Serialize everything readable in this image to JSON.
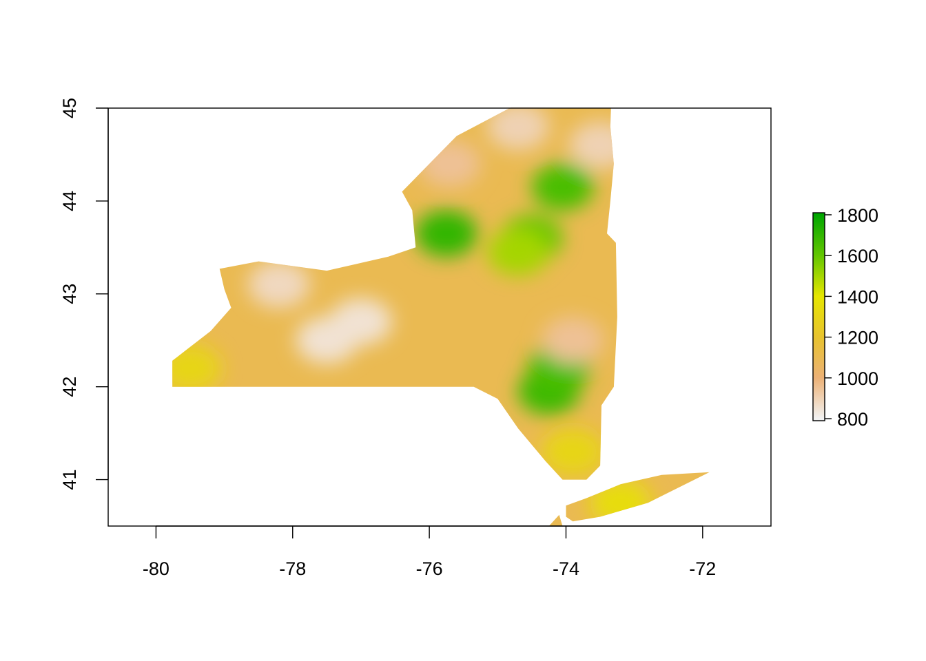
{
  "chart_data": {
    "type": "heatmap",
    "title": "",
    "xlabel": "",
    "ylabel": "",
    "xlim": [
      -80.7,
      -71.0
    ],
    "ylim": [
      40.5,
      45.0
    ],
    "x_ticks": [
      "-80",
      "-78",
      "-76",
      "-74",
      "-72"
    ],
    "x_tick_values": [
      -80,
      -78,
      -76,
      -74,
      -72
    ],
    "y_ticks": [
      "41",
      "42",
      "43",
      "44",
      "45"
    ],
    "y_tick_values": [
      41,
      42,
      43,
      44,
      45
    ],
    "legend": {
      "position": "right",
      "labels": [
        "800",
        "1000",
        "1200",
        "1400",
        "1600",
        "1800"
      ],
      "values": [
        800,
        1000,
        1200,
        1400,
        1600,
        1800
      ],
      "range": [
        790,
        1810
      ],
      "colors": [
        "#f2f2f2",
        "#ecb176",
        "#e8c32e",
        "#e6e600",
        "#63c600",
        "#00a600"
      ]
    },
    "region_outline": [
      [
        -79.76,
        42.0
      ],
      [
        -75.35,
        42.0
      ],
      [
        -75.0,
        41.87
      ],
      [
        -74.7,
        41.55
      ],
      [
        -74.3,
        41.2
      ],
      [
        -74.05,
        41.0
      ],
      [
        -73.7,
        41.0
      ],
      [
        -73.5,
        41.15
      ],
      [
        -73.48,
        41.8
      ],
      [
        -73.3,
        42.0
      ],
      [
        -73.25,
        42.75
      ],
      [
        -73.27,
        43.55
      ],
      [
        -73.4,
        43.65
      ],
      [
        -73.35,
        44.0
      ],
      [
        -73.3,
        44.4
      ],
      [
        -73.35,
        44.8
      ],
      [
        -73.34,
        45.01
      ],
      [
        -74.8,
        45.01
      ],
      [
        -75.6,
        44.7
      ],
      [
        -76.2,
        44.25
      ],
      [
        -76.4,
        44.1
      ],
      [
        -76.25,
        43.9
      ],
      [
        -76.2,
        43.5
      ],
      [
        -76.6,
        43.4
      ],
      [
        -77.5,
        43.25
      ],
      [
        -78.5,
        43.35
      ],
      [
        -79.07,
        43.27
      ],
      [
        -79.0,
        43.05
      ],
      [
        -78.9,
        42.85
      ],
      [
        -79.2,
        42.6
      ],
      [
        -79.76,
        42.28
      ]
    ],
    "long_island_outline": [
      [
        -74.0,
        40.6
      ],
      [
        -73.9,
        40.55
      ],
      [
        -73.5,
        40.6
      ],
      [
        -72.8,
        40.75
      ],
      [
        -71.9,
        41.08
      ],
      [
        -72.6,
        41.05
      ],
      [
        -73.2,
        40.95
      ],
      [
        -73.7,
        40.8
      ],
      [
        -74.0,
        40.72
      ]
    ],
    "staten_island_outline": [
      [
        -74.25,
        40.5
      ],
      [
        -74.05,
        40.5
      ],
      [
        -74.1,
        40.62
      ]
    ],
    "value_patches": [
      {
        "x": -75.75,
        "y": 43.65,
        "value": 1700
      },
      {
        "x": -74.5,
        "y": 43.6,
        "value": 1600
      },
      {
        "x": -74.7,
        "y": 43.45,
        "value": 1500
      },
      {
        "x": -74.05,
        "y": 44.15,
        "value": 1650
      },
      {
        "x": -74.25,
        "y": 41.95,
        "value": 1680
      },
      {
        "x": -74.1,
        "y": 42.2,
        "value": 1650
      },
      {
        "x": -73.2,
        "y": 40.75,
        "value": 1350
      },
      {
        "x": -73.9,
        "y": 41.3,
        "value": 1300
      },
      {
        "x": -79.5,
        "y": 42.2,
        "value": 1300
      },
      {
        "x": -77.5,
        "y": 42.5,
        "value": 850
      },
      {
        "x": -77.0,
        "y": 42.7,
        "value": 850
      },
      {
        "x": -78.2,
        "y": 43.1,
        "value": 880
      },
      {
        "x": -74.7,
        "y": 44.8,
        "value": 900
      },
      {
        "x": -73.5,
        "y": 44.6,
        "value": 900
      },
      {
        "x": -75.7,
        "y": 44.4,
        "value": 950
      },
      {
        "x": -73.9,
        "y": 42.5,
        "value": 950
      }
    ]
  }
}
